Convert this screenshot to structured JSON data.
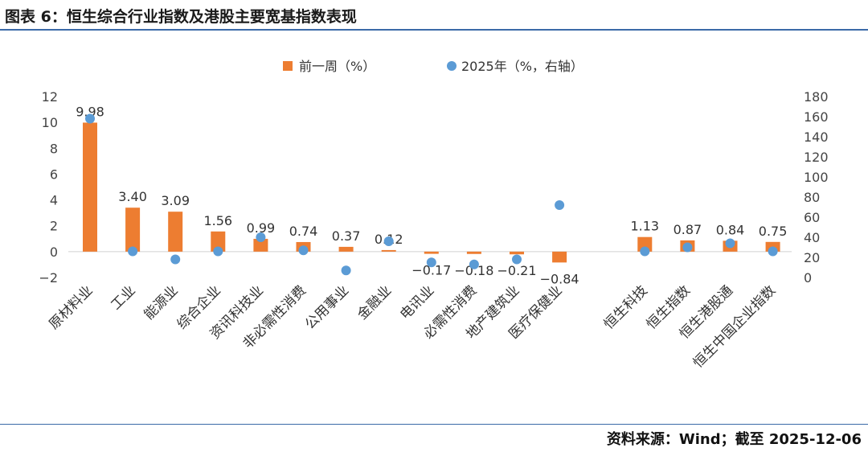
{
  "title": "图表 6：恒生综合行业指数及港股主要宽基指数表现",
  "source": "资料来源：Wind；截至 2025-12-06",
  "chart_data": {
    "type": "bar",
    "categories": [
      "原材料业",
      "工业",
      "能源业",
      "综合企业",
      "资讯科技业",
      "非必需性消费",
      "公用事业",
      "金融业",
      "电讯业",
      "必需性消费",
      "地产建筑业",
      "医疗保健业",
      "",
      "恒生科技",
      "恒生指数",
      "恒生港股通",
      "恒生中国企业指数"
    ],
    "series": [
      {
        "name": "前一周（%）",
        "axis": "left",
        "type": "bar",
        "color": "#ed7d31",
        "values": [
          9.98,
          3.4,
          3.09,
          1.56,
          0.99,
          0.74,
          0.37,
          0.12,
          -0.17,
          -0.18,
          -0.21,
          -0.84,
          null,
          1.13,
          0.87,
          0.84,
          0.75
        ],
        "labels": [
          "9.98",
          "3.40",
          "3.09",
          "1.56",
          "0.99",
          "0.74",
          "0.37",
          "0.12",
          "−0.17",
          "−0.18",
          "−0.21",
          "−0.84",
          "",
          "1.13",
          "0.87",
          "0.84",
          "0.75"
        ]
      },
      {
        "name": "2025年（%，右轴）",
        "axis": "right",
        "type": "scatter",
        "color": "#5b9bd5",
        "values": [
          158,
          26,
          18,
          26,
          40,
          27,
          7,
          36,
          15,
          13,
          18,
          72,
          null,
          26,
          30,
          34,
          26
        ]
      }
    ],
    "ylim_left": [
      -2,
      12
    ],
    "yticks_left": [
      "-2",
      "0",
      "2",
      "4",
      "6",
      "8",
      "10",
      "12"
    ],
    "ylim_right": [
      0,
      180
    ],
    "yticks_right": [
      "0",
      "20",
      "40",
      "60",
      "80",
      "100",
      "120",
      "140",
      "160",
      "180"
    ],
    "legend_position": "top"
  }
}
